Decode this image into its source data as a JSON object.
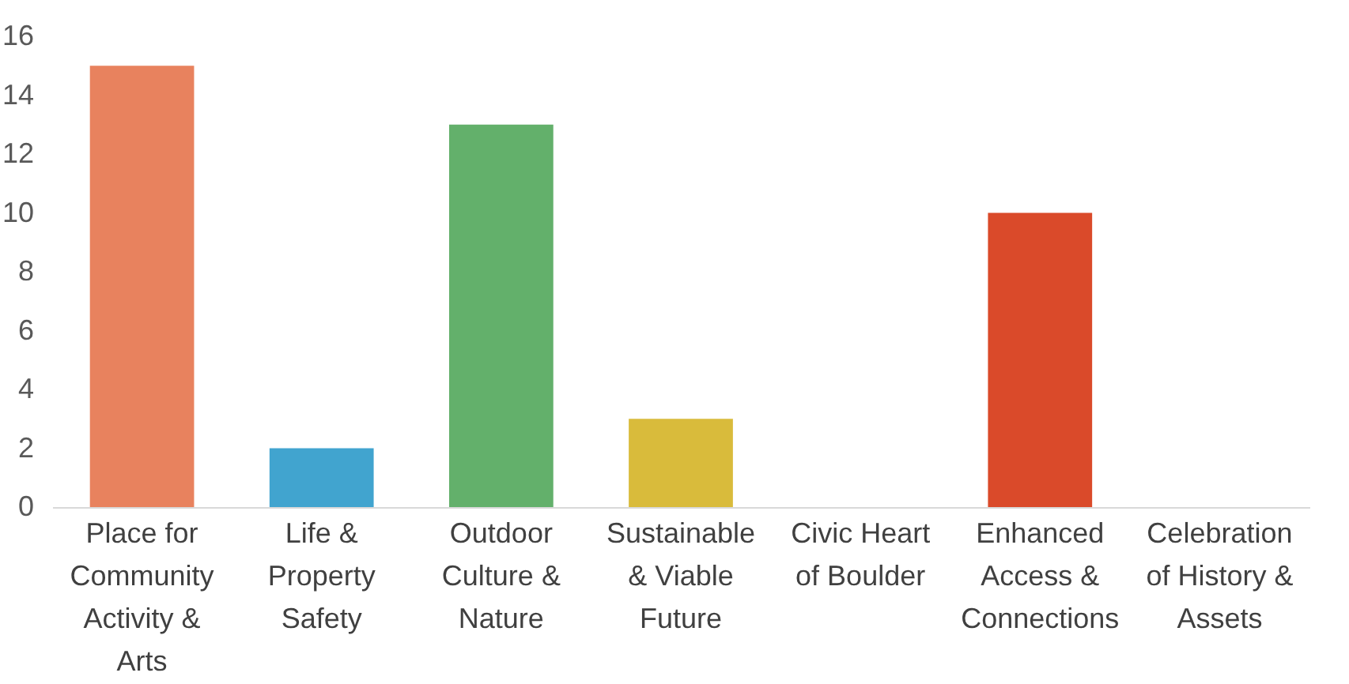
{
  "chart_data": {
    "type": "bar",
    "categories": [
      "Place for Community Activity & Arts",
      "Life & Property Safety",
      "Outdoor Culture & Nature",
      "Sustainable & Viable Future",
      "Civic Heart of Boulder",
      "Enhanced Access & Connections",
      "Celebration of History & Assets"
    ],
    "values": [
      15,
      2,
      13,
      3,
      0,
      10,
      0
    ],
    "colors": [
      "#e8825e",
      "#41a4cf",
      "#63b06b",
      "#d9bb3b",
      "#a5a5a5",
      "#da4a2a",
      "#a5a5a5"
    ],
    "ylim": [
      0,
      16
    ],
    "yticks": [
      0,
      2,
      4,
      6,
      8,
      10,
      12,
      14,
      16
    ],
    "grid": false
  }
}
